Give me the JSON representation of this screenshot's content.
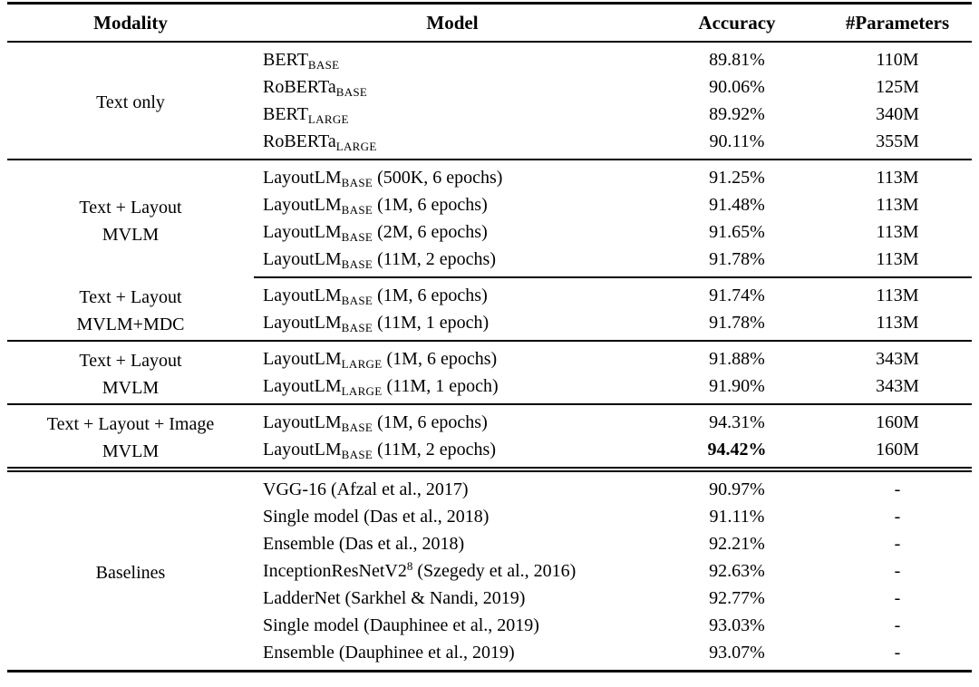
{
  "colors": {
    "text": "#000000",
    "rule": "#000000",
    "background": "#ffffff"
  },
  "table": {
    "headers": [
      "Modality",
      "Model",
      "Accuracy",
      "#Parameters"
    ],
    "sections": [
      {
        "id": "text-only",
        "modality_lines": [
          "Text only"
        ],
        "divider_above": "none",
        "rows": [
          {
            "model": {
              "pre": "BERT",
              "sub": "BASE",
              "post": ""
            },
            "accuracy": "89.81%",
            "accuracy_bold": false,
            "params": "110M"
          },
          {
            "model": {
              "pre": "RoBERTa",
              "sub": "BASE",
              "post": ""
            },
            "accuracy": "90.06%",
            "accuracy_bold": false,
            "params": "125M"
          },
          {
            "model": {
              "pre": "BERT",
              "sub": "LARGE",
              "post": ""
            },
            "accuracy": "89.92%",
            "accuracy_bold": false,
            "params": "340M"
          },
          {
            "model": {
              "pre": "RoBERTa",
              "sub": "LARGE",
              "post": ""
            },
            "accuracy": "90.11%",
            "accuracy_bold": false,
            "params": "355M"
          }
        ]
      },
      {
        "id": "text-layout-mvlm",
        "modality_lines": [
          "Text + Layout",
          "MVLM"
        ],
        "divider_above": "full",
        "rows": [
          {
            "model": {
              "pre": "LayoutLM",
              "sub": "BASE",
              "post": " (500K, 6 epochs)"
            },
            "accuracy": "91.25%",
            "accuracy_bold": false,
            "params": "113M"
          },
          {
            "model": {
              "pre": "LayoutLM",
              "sub": "BASE",
              "post": " (1M, 6 epochs)"
            },
            "accuracy": "91.48%",
            "accuracy_bold": false,
            "params": "113M"
          },
          {
            "model": {
              "pre": "LayoutLM",
              "sub": "BASE",
              "post": " (2M, 6 epochs)"
            },
            "accuracy": "91.65%",
            "accuracy_bold": false,
            "params": "113M"
          },
          {
            "model": {
              "pre": "LayoutLM",
              "sub": "BASE",
              "post": " (11M, 2 epochs)"
            },
            "accuracy": "91.78%",
            "accuracy_bold": false,
            "params": "113M"
          }
        ]
      },
      {
        "id": "text-layout-mvlm-mdc",
        "modality_lines": [
          "Text + Layout",
          "MVLM+MDC"
        ],
        "divider_above": "partial",
        "rows": [
          {
            "model": {
              "pre": "LayoutLM",
              "sub": "BASE",
              "post": " (1M, 6 epochs)"
            },
            "accuracy": "91.74%",
            "accuracy_bold": false,
            "params": "113M"
          },
          {
            "model": {
              "pre": "LayoutLM",
              "sub": "BASE",
              "post": " (11M, 1 epoch)"
            },
            "accuracy": "91.78%",
            "accuracy_bold": false,
            "params": "113M"
          }
        ]
      },
      {
        "id": "text-layout-mvlm-large",
        "modality_lines": [
          "Text + Layout",
          "MVLM"
        ],
        "divider_above": "full",
        "rows": [
          {
            "model": {
              "pre": "LayoutLM",
              "sub": "LARGE",
              "post": " (1M, 6 epochs)"
            },
            "accuracy": "91.88%",
            "accuracy_bold": false,
            "params": "343M"
          },
          {
            "model": {
              "pre": "LayoutLM",
              "sub": "LARGE",
              "post": " (11M, 1 epoch)"
            },
            "accuracy": "91.90%",
            "accuracy_bold": false,
            "params": "343M"
          }
        ]
      },
      {
        "id": "text-layout-image-mvlm",
        "modality_lines": [
          "Text + Layout + Image",
          "MVLM"
        ],
        "divider_above": "full",
        "rows": [
          {
            "model": {
              "pre": "LayoutLM",
              "sub": "BASE",
              "post": " (1M, 6 epochs)"
            },
            "accuracy": "94.31%",
            "accuracy_bold": false,
            "params": "160M"
          },
          {
            "model": {
              "pre": "LayoutLM",
              "sub": "BASE",
              "post": " (11M, 2 epochs)"
            },
            "accuracy": "94.42%",
            "accuracy_bold": true,
            "params": "160M"
          }
        ]
      },
      {
        "id": "baselines",
        "modality_lines": [
          "Baselines"
        ],
        "divider_above": "double",
        "rows": [
          {
            "model": {
              "pre": "VGG-16 (Afzal et al., 2017)",
              "post": ""
            },
            "accuracy": "90.97%",
            "accuracy_bold": false,
            "params": "-"
          },
          {
            "model": {
              "pre": "Single model (Das et al., 2018)",
              "post": ""
            },
            "accuracy": "91.11%",
            "accuracy_bold": false,
            "params": "-"
          },
          {
            "model": {
              "pre": "Ensemble (Das et al., 2018)",
              "post": ""
            },
            "accuracy": "92.21%",
            "accuracy_bold": false,
            "params": "-"
          },
          {
            "model": {
              "pre": "InceptionResNetV2",
              "sup": "8",
              "post": " (Szegedy et al., 2016)"
            },
            "accuracy": "92.63%",
            "accuracy_bold": false,
            "params": "-"
          },
          {
            "model": {
              "pre": "LadderNet (Sarkhel & Nandi, 2019)",
              "post": ""
            },
            "accuracy": "92.77%",
            "accuracy_bold": false,
            "params": "-"
          },
          {
            "model": {
              "pre": "Single model (Dauphinee et al., 2019)",
              "post": ""
            },
            "accuracy": "93.03%",
            "accuracy_bold": false,
            "params": "-"
          },
          {
            "model": {
              "pre": "Ensemble (Dauphinee et al., 2019)",
              "post": ""
            },
            "accuracy": "93.07%",
            "accuracy_bold": false,
            "params": "-"
          }
        ]
      }
    ]
  }
}
